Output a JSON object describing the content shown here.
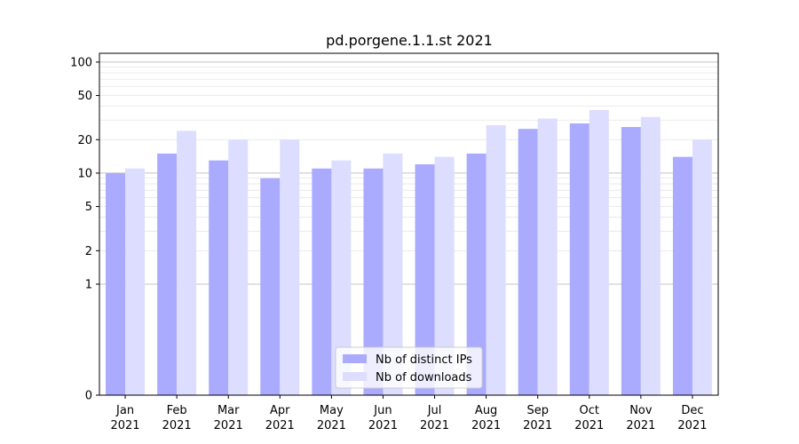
{
  "chart_data": {
    "type": "bar",
    "title": "pd.porgene.1.1.st 2021",
    "xlabel": "",
    "ylabel": "",
    "yscale": "symlog",
    "ylim": [
      0,
      120
    ],
    "yticks": [
      0,
      1,
      2,
      5,
      10,
      20,
      50,
      100
    ],
    "grid": true,
    "legend_position": "lower-center",
    "categories": [
      "Jan\n2021",
      "Feb\n2021",
      "Mar\n2021",
      "Apr\n2021",
      "May\n2021",
      "Jun\n2021",
      "Jul\n2021",
      "Aug\n2021",
      "Sep\n2021",
      "Oct\n2021",
      "Nov\n2021",
      "Dec\n2021"
    ],
    "series": [
      {
        "name": "Nb of distinct IPs",
        "color": "#aaaaff",
        "values": [
          10,
          15,
          13,
          9,
          11,
          11,
          12,
          15,
          25,
          28,
          26,
          14
        ]
      },
      {
        "name": "Nb of downloads",
        "color": "#ddddff",
        "values": [
          11,
          24,
          20,
          20,
          13,
          15,
          14,
          27,
          31,
          37,
          32,
          20
        ]
      }
    ]
  }
}
